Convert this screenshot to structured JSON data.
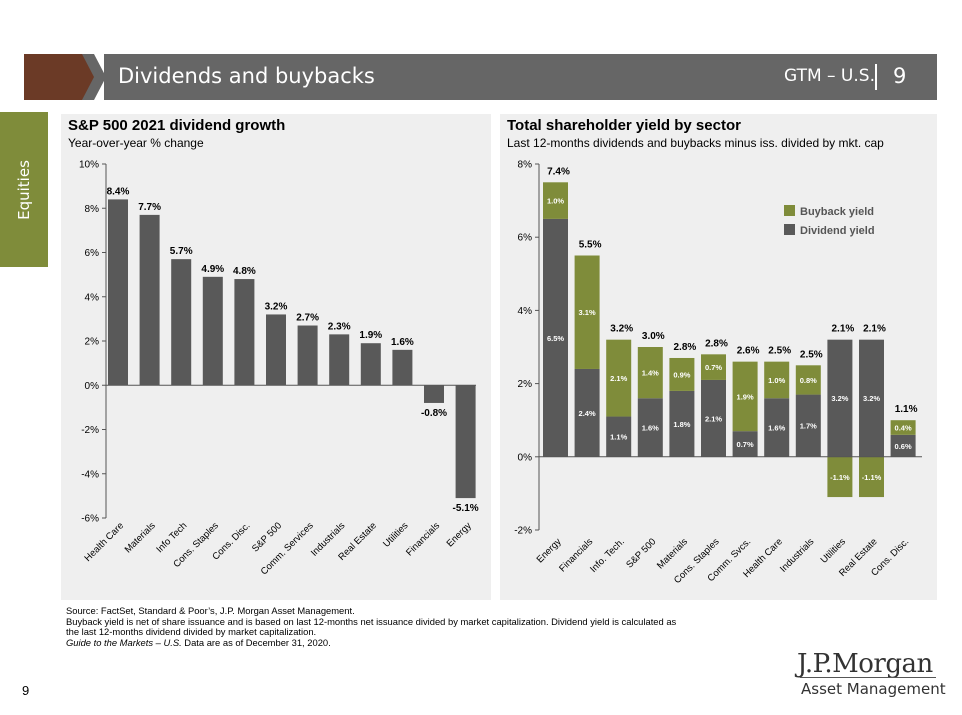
{
  "header": {
    "title": "Dividends and buybacks",
    "gtm_label": "GTM – U.S.",
    "page_number": "9"
  },
  "side_tab": {
    "label": "Equities"
  },
  "colors": {
    "header_bg": "#666666",
    "header_accent": "#6b3a26",
    "olive": "#7f8c3a",
    "bar_gray": "#595959",
    "panel_bg": "#efefef"
  },
  "left_panel": {
    "title": "S&P 500 2021 dividend growth",
    "subtitle": "Year-over-year % change"
  },
  "right_panel": {
    "title": "Total shareholder yield by sector",
    "subtitle": "Last 12-months dividends and buybacks minus iss. divided by mkt. cap"
  },
  "chart_data": [
    {
      "type": "bar",
      "title": "S&P 500 2021 dividend growth",
      "subtitle": "Year-over-year % change",
      "categories": [
        "Health Care",
        "Materials",
        "Info Tech",
        "Cons. Staples",
        "Cons. Disc.",
        "S&P 500",
        "Comm. Services",
        "Industrials",
        "Real Estate",
        "Utilities",
        "Financials",
        "Energy"
      ],
      "values": [
        8.4,
        7.7,
        5.7,
        4.9,
        4.8,
        3.2,
        2.7,
        2.3,
        1.9,
        1.6,
        -0.8,
        -5.1
      ],
      "labels": [
        "8.4%",
        "7.7%",
        "5.7%",
        "4.9%",
        "4.8%",
        "3.2%",
        "2.7%",
        "2.3%",
        "1.9%",
        "1.6%",
        "-0.8%",
        "-5.1%"
      ],
      "yticks": [
        "10%",
        "8%",
        "6%",
        "4%",
        "2%",
        "0%",
        "-2%",
        "-4%",
        "-6%"
      ],
      "ylim": [
        -6,
        10
      ],
      "grid": false
    },
    {
      "type": "bar",
      "stacked": true,
      "title": "Total shareholder yield by sector",
      "subtitle": "Last 12-months dividends and buybacks minus iss. divided by mkt. cap",
      "categories": [
        "Energy",
        "Financials",
        "Info. Tech.",
        "S&P 500",
        "Materials",
        "Cons. Staples",
        "Comm. Svcs.",
        "Health Care",
        "Industrials",
        "Utilities",
        "Real Estate",
        "Cons. Disc."
      ],
      "series": [
        {
          "name": "Dividend yield",
          "color": "#595959",
          "values": [
            6.5,
            2.4,
            1.1,
            1.6,
            1.8,
            2.1,
            0.7,
            1.6,
            1.7,
            3.2,
            3.2,
            0.6
          ],
          "labels": [
            "6.5%",
            "2.4%",
            "1.1%",
            "1.6%",
            "1.8%",
            "2.1%",
            "0.7%",
            "1.6%",
            "1.7%",
            "3.2%",
            "3.2%",
            "0.6%"
          ]
        },
        {
          "name": "Buyback yield",
          "color": "#7f8c3a",
          "values": [
            1.0,
            3.1,
            2.1,
            1.4,
            0.9,
            0.7,
            1.9,
            1.0,
            0.8,
            -1.1,
            -1.1,
            0.4
          ],
          "labels": [
            "1.0%",
            "3.1%",
            "2.1%",
            "1.4%",
            "0.9%",
            "0.7%",
            "1.9%",
            "1.0%",
            "0.8%",
            "-1.1%",
            "-1.1%",
            "0.4%"
          ]
        }
      ],
      "totals": [
        7.4,
        5.5,
        3.2,
        3.0,
        2.8,
        2.8,
        2.6,
        2.5,
        2.5,
        2.1,
        2.1,
        1.1
      ],
      "total_labels": [
        "7.4%",
        "5.5%",
        "3.2%",
        "3.0%",
        "2.8%",
        "2.8%",
        "2.6%",
        "2.5%",
        "2.5%",
        "2.1%",
        "2.1%",
        "1.1%"
      ],
      "yticks": [
        "8%",
        "6%",
        "4%",
        "2%",
        "0%",
        "-2%"
      ],
      "ylim": [
        -2,
        8
      ],
      "legend": "top-right",
      "grid": false
    }
  ],
  "footnote": {
    "line1": "Source: FactSet, Standard & Poor’s, J.P. Morgan Asset Management.",
    "line2": "Buyback yield is net of share issuance and is based on last 12-months net issuance divided by market capitalization. Dividend yield is calculated as",
    "line3": "the last 12-months dividend divided by market capitalization.",
    "line4_italic": "Guide to the Markets – U.S.",
    "line4_rest": " Data are as of December 31, 2020."
  },
  "logo": {
    "name": "J.P.Morgan",
    "sub": "Asset Management"
  },
  "page_number": "9"
}
